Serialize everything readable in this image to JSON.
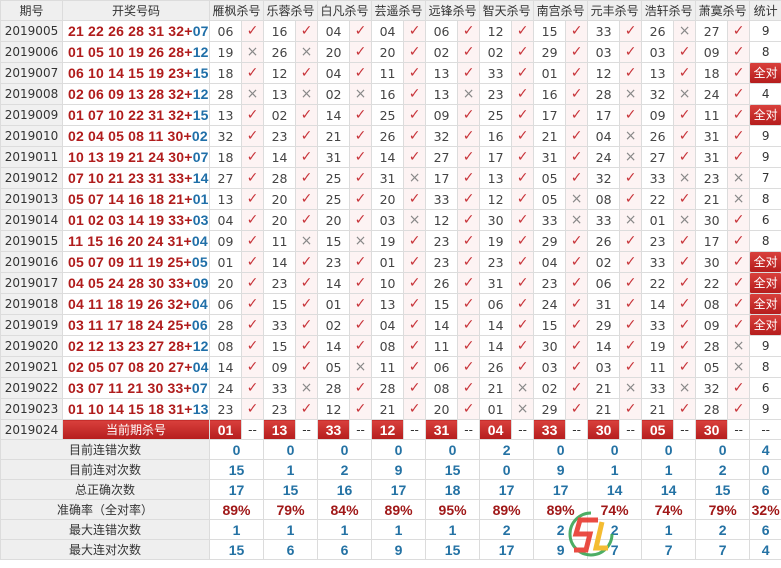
{
  "headers": {
    "issue": "期号",
    "draw": "开奖号码",
    "experts": [
      "雁枫杀号",
      "乐蓉杀号",
      "白凡杀号",
      "芸遥杀号",
      "远锋杀号",
      "智天杀号",
      "南宫杀号",
      "元丰杀号",
      "浩轩杀号",
      "萧寞杀号"
    ],
    "stat": "统计"
  },
  "all_right_label": "全对",
  "marks": {
    "v": "✓",
    "x": "×"
  },
  "rows": [
    {
      "issue": "2019005",
      "reds": "21 22 26 28 31 32",
      "blue": "07",
      "picks": [
        "06v",
        "16v",
        "04v",
        "04v",
        "06v",
        "12v",
        "15v",
        "33v",
        "26x",
        "27v"
      ],
      "stat": "9"
    },
    {
      "issue": "2019006",
      "reds": "01 05 10 19 26 28",
      "blue": "12",
      "picks": [
        "19x",
        "26x",
        "20v",
        "20v",
        "02v",
        "02v",
        "29v",
        "03v",
        "03v",
        "09v"
      ],
      "stat": "8"
    },
    {
      "issue": "2019007",
      "reds": "06 10 14 15 19 23",
      "blue": "15",
      "picks": [
        "18v",
        "12v",
        "04v",
        "11v",
        "13v",
        "33v",
        "01v",
        "12v",
        "13v",
        "18v"
      ],
      "stat": "全对"
    },
    {
      "issue": "2019008",
      "reds": "02 06 09 13 28 32",
      "blue": "12",
      "picks": [
        "28x",
        "13x",
        "02x",
        "16v",
        "13x",
        "23v",
        "16v",
        "28x",
        "32x",
        "24v"
      ],
      "stat": "4"
    },
    {
      "issue": "2019009",
      "reds": "01 07 10 22 31 32",
      "blue": "15",
      "picks": [
        "13v",
        "02v",
        "14v",
        "25v",
        "09v",
        "25v",
        "17v",
        "17v",
        "09v",
        "11v"
      ],
      "stat": "全对"
    },
    {
      "issue": "2019010",
      "reds": "02 04 05 08 11 30",
      "blue": "02",
      "picks": [
        "32v",
        "23v",
        "21v",
        "26v",
        "32v",
        "16v",
        "21v",
        "04x",
        "26v",
        "31v"
      ],
      "stat": "9"
    },
    {
      "issue": "2019011",
      "reds": "10 13 19 21 24 30",
      "blue": "07",
      "picks": [
        "18v",
        "14v",
        "31v",
        "14v",
        "27v",
        "17v",
        "31v",
        "24x",
        "27v",
        "31v"
      ],
      "stat": "9"
    },
    {
      "issue": "2019012",
      "reds": "07 10 21 23 31 33",
      "blue": "14",
      "picks": [
        "27v",
        "28v",
        "25v",
        "31x",
        "17v",
        "13v",
        "05v",
        "32v",
        "33x",
        "23x"
      ],
      "stat": "7"
    },
    {
      "issue": "2019013",
      "reds": "05 07 14 16 18 21",
      "blue": "01",
      "picks": [
        "13v",
        "20v",
        "25v",
        "20v",
        "33v",
        "12v",
        "05x",
        "08v",
        "22v",
        "21x"
      ],
      "stat": "8"
    },
    {
      "issue": "2019014",
      "reds": "01 02 03 14 19 33",
      "blue": "03",
      "picks": [
        "04v",
        "20v",
        "20v",
        "03x",
        "12v",
        "30v",
        "33x",
        "33x",
        "01x",
        "30v"
      ],
      "stat": "6"
    },
    {
      "issue": "2019015",
      "reds": "11 15 16 20 24 31",
      "blue": "04",
      "picks": [
        "09v",
        "11x",
        "15x",
        "19v",
        "23v",
        "19v",
        "29v",
        "26v",
        "23v",
        "17v"
      ],
      "stat": "8"
    },
    {
      "issue": "2019016",
      "reds": "05 07 09 11 19 25",
      "blue": "05",
      "picks": [
        "01v",
        "14v",
        "23v",
        "01v",
        "23v",
        "23v",
        "04v",
        "02v",
        "33v",
        "30v"
      ],
      "stat": "全对"
    },
    {
      "issue": "2019017",
      "reds": "04 05 24 28 30 33",
      "blue": "09",
      "picks": [
        "20v",
        "23v",
        "14v",
        "10v",
        "26v",
        "31v",
        "23v",
        "06v",
        "22v",
        "22v"
      ],
      "stat": "全对"
    },
    {
      "issue": "2019018",
      "reds": "04 11 18 19 26 32",
      "blue": "04",
      "picks": [
        "06v",
        "15v",
        "01v",
        "13v",
        "15v",
        "06v",
        "24v",
        "31v",
        "14v",
        "08v"
      ],
      "stat": "全对"
    },
    {
      "issue": "2019019",
      "reds": "03 11 17 18 24 25",
      "blue": "06",
      "picks": [
        "28v",
        "33v",
        "02v",
        "04v",
        "14v",
        "14v",
        "15v",
        "29v",
        "33v",
        "09v"
      ],
      "stat": "全对"
    },
    {
      "issue": "2019020",
      "reds": "02 12 13 23 27 28",
      "blue": "12",
      "picks": [
        "08v",
        "15v",
        "14v",
        "08v",
        "11v",
        "14v",
        "30v",
        "14v",
        "19v",
        "28x"
      ],
      "stat": "9"
    },
    {
      "issue": "2019021",
      "reds": "02 05 07 08 20 27",
      "blue": "04",
      "picks": [
        "14v",
        "09v",
        "05x",
        "11v",
        "06v",
        "26v",
        "03v",
        "03v",
        "11v",
        "05x"
      ],
      "stat": "8"
    },
    {
      "issue": "2019022",
      "reds": "03 07 11 21 30 33",
      "blue": "07",
      "picks": [
        "24v",
        "33x",
        "28v",
        "28v",
        "08v",
        "21x",
        "02v",
        "21x",
        "33x",
        "32v"
      ],
      "stat": "6"
    },
    {
      "issue": "2019023",
      "reds": "01 10 14 15 18 31",
      "blue": "13",
      "picks": [
        "23v",
        "23v",
        "12v",
        "21v",
        "20v",
        "01x",
        "29v",
        "21v",
        "21v",
        "28v"
      ],
      "stat": "9"
    }
  ],
  "current": {
    "issue": "2019024",
    "label": "当前期杀号",
    "picks": [
      "01",
      "13",
      "33",
      "12",
      "31",
      "04",
      "33",
      "30",
      "05",
      "30"
    ],
    "placeholder": "--"
  },
  "summary": [
    {
      "label": "目前连错次数",
      "values": [
        "0",
        "0",
        "0",
        "0",
        "0",
        "2",
        "0",
        "0",
        "0",
        "0",
        "4"
      ]
    },
    {
      "label": "目前连对次数",
      "values": [
        "15",
        "1",
        "2",
        "9",
        "15",
        "0",
        "9",
        "1",
        "1",
        "2",
        "0"
      ]
    },
    {
      "label": "总正确次数",
      "values": [
        "17",
        "15",
        "16",
        "17",
        "18",
        "17",
        "17",
        "14",
        "14",
        "15",
        "6"
      ]
    },
    {
      "label": "准确率（全对率）",
      "values": [
        "89%",
        "79%",
        "84%",
        "89%",
        "95%",
        "89%",
        "89%",
        "74%",
        "74%",
        "79%",
        "32%"
      ],
      "pct": true
    },
    {
      "label": "最大连错次数",
      "values": [
        "1",
        "1",
        "1",
        "1",
        "1",
        "2",
        "2",
        "2",
        "1",
        "2",
        "6"
      ]
    },
    {
      "label": "最大连对次数",
      "values": [
        "15",
        "6",
        "6",
        "9",
        "15",
        "17",
        "9",
        "7",
        "7",
        "7",
        "4"
      ]
    }
  ],
  "colors": {
    "red": "#b01c1c",
    "blue": "#1f6fa8",
    "check": "#c8343a",
    "badge": "#c62d2a"
  }
}
